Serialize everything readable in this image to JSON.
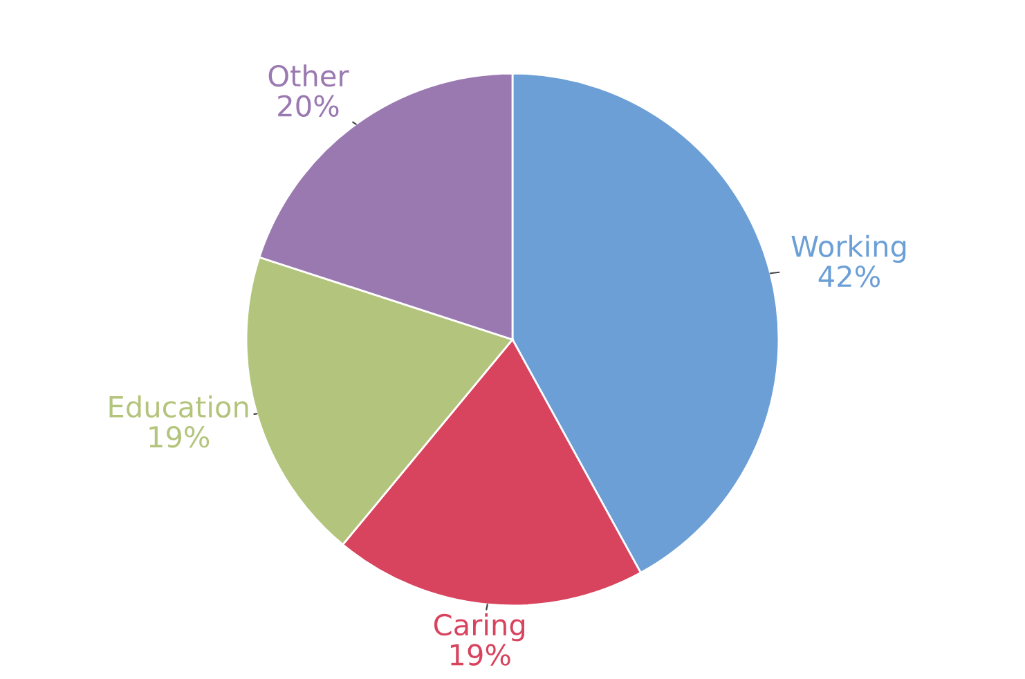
{
  "chart_data": {
    "type": "pie",
    "categories": [
      "Working",
      "Caring",
      "Education",
      "Other"
    ],
    "values": [
      42,
      19,
      19,
      20
    ],
    "value_labels": [
      "42%",
      "19%",
      "19%",
      "20%"
    ],
    "colors": [
      "#6b9fd6",
      "#d8435e",
      "#b3c47c",
      "#9a79b0"
    ]
  }
}
